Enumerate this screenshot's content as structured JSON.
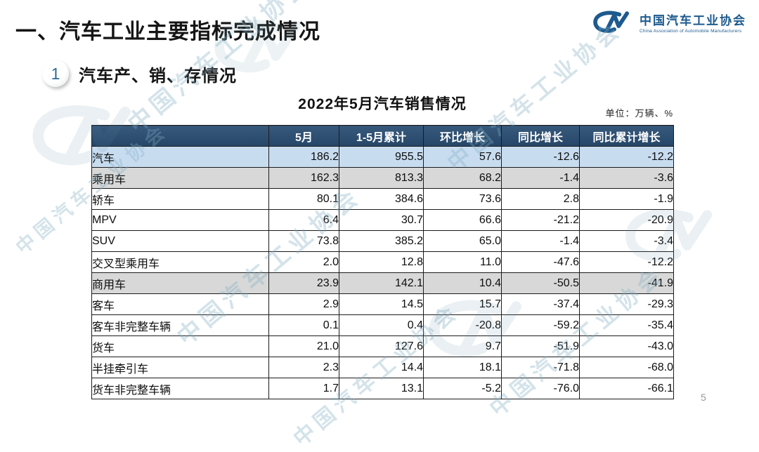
{
  "page": {
    "title": "一、汽车工业主要指标完成情况",
    "page_number": "5"
  },
  "logo": {
    "name_cn": "中国汽车工业协会",
    "name_en": "China Association of Automobile Manufacturers",
    "color": "#1d5a8e"
  },
  "section": {
    "number": "1",
    "title": "汽车产、销、存情况"
  },
  "table": {
    "title": "2022年5月汽车销售情况",
    "unit_note": "单位：万辆、%",
    "columns": [
      "",
      "5月",
      "1-5月累计",
      "环比增长",
      "同比增长",
      "同比累计增长"
    ],
    "rows": [
      {
        "label": "汽车",
        "indent": 0,
        "highlight": "blue",
        "values": [
          "186.2",
          "955.5",
          "57.6",
          "-12.6",
          "-12.2"
        ]
      },
      {
        "label": "乘用车",
        "indent": 1,
        "highlight": "gray",
        "values": [
          "162.3",
          "813.3",
          "68.2",
          "-1.4",
          "-3.6"
        ]
      },
      {
        "label": "轿车",
        "indent": 3,
        "highlight": "none",
        "values": [
          "80.1",
          "384.6",
          "73.6",
          "2.8",
          "-1.9"
        ]
      },
      {
        "label": "MPV",
        "indent": 3,
        "highlight": "none",
        "values": [
          "6.4",
          "30.7",
          "66.6",
          "-21.2",
          "-20.9"
        ]
      },
      {
        "label": "SUV",
        "indent": 3,
        "highlight": "none",
        "values": [
          "73.8",
          "385.2",
          "65.0",
          "-1.4",
          "-3.4"
        ]
      },
      {
        "label": "交叉型乘用车",
        "indent": 3,
        "highlight": "none",
        "values": [
          "2.0",
          "12.8",
          "11.0",
          "-47.6",
          "-12.2"
        ]
      },
      {
        "label": "商用车",
        "indent": 1,
        "highlight": "gray",
        "values": [
          "23.9",
          "142.1",
          "10.4",
          "-50.5",
          "-41.9"
        ]
      },
      {
        "label": "客车",
        "indent": 2,
        "highlight": "none",
        "values": [
          "2.9",
          "14.5",
          "15.7",
          "-37.4",
          "-29.3"
        ]
      },
      {
        "label": "客车非完整车辆",
        "indent": 4,
        "highlight": "none",
        "values": [
          "0.1",
          "0.4",
          "-20.8",
          "-59.2",
          "-35.4"
        ]
      },
      {
        "label": "货车",
        "indent": 2,
        "highlight": "none",
        "values": [
          "21.0",
          "127.6",
          "9.7",
          "-51.9",
          "-43.0"
        ]
      },
      {
        "label": "半挂牵引车",
        "indent": 4,
        "highlight": "none",
        "values": [
          "2.3",
          "14.4",
          "18.1",
          "-71.8",
          "-68.0"
        ]
      },
      {
        "label": "货车非完整车辆",
        "indent": 4,
        "highlight": "none",
        "values": [
          "1.7",
          "13.1",
          "-5.2",
          "-76.0",
          "-66.1"
        ]
      }
    ]
  },
  "watermark": {
    "text": "中国汽车工业协会"
  },
  "colors": {
    "header_bg": "#2b4c6c",
    "row_blue": "#c8dcf0",
    "row_gray": "#d8d8d8",
    "accent_blue": "#1d5a8e"
  }
}
